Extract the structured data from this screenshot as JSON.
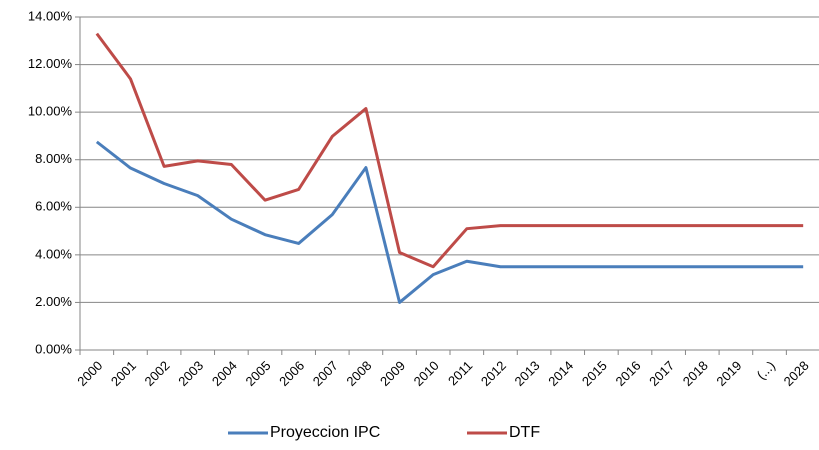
{
  "chart_data": {
    "type": "line",
    "categories": [
      "2000",
      "2001",
      "2002",
      "2003",
      "2004",
      "2005",
      "2006",
      "2007",
      "2008",
      "2009",
      "2010",
      "2011",
      "2012",
      "2013",
      "2014",
      "2015",
      "2016",
      "2017",
      "2018",
      "2019",
      "(...)",
      "2028"
    ],
    "series": [
      {
        "name": "Proyeccion IPC",
        "color": "#4a7ebb",
        "values": [
          8.75,
          7.65,
          7.0,
          6.49,
          5.5,
          4.85,
          4.48,
          5.69,
          7.67,
          2.0,
          3.17,
          3.73,
          3.5,
          3.5,
          3.5,
          3.5,
          3.5,
          3.5,
          3.5,
          3.5,
          3.5,
          3.5
        ]
      },
      {
        "name": "DTF",
        "color": "#be4b48",
        "values": [
          13.3,
          11.4,
          7.72,
          7.95,
          7.8,
          6.3,
          6.75,
          8.98,
          10.15,
          4.1,
          3.5,
          5.1,
          5.23,
          5.23,
          5.23,
          5.23,
          5.23,
          5.23,
          5.23,
          5.23,
          5.23,
          5.23
        ]
      }
    ],
    "ylim": [
      0,
      14
    ],
    "yticks": [
      {
        "value": 0,
        "label": "0.00%"
      },
      {
        "value": 2,
        "label": "2.00%"
      },
      {
        "value": 4,
        "label": "4.00%"
      },
      {
        "value": 6,
        "label": "6.00%"
      },
      {
        "value": 8,
        "label": "8.00%"
      },
      {
        "value": 10,
        "label": "10.00%"
      },
      {
        "value": 12,
        "label": "12.00%"
      },
      {
        "value": 14,
        "label": "14.00%"
      }
    ],
    "grid": true,
    "legend": "bottom"
  }
}
